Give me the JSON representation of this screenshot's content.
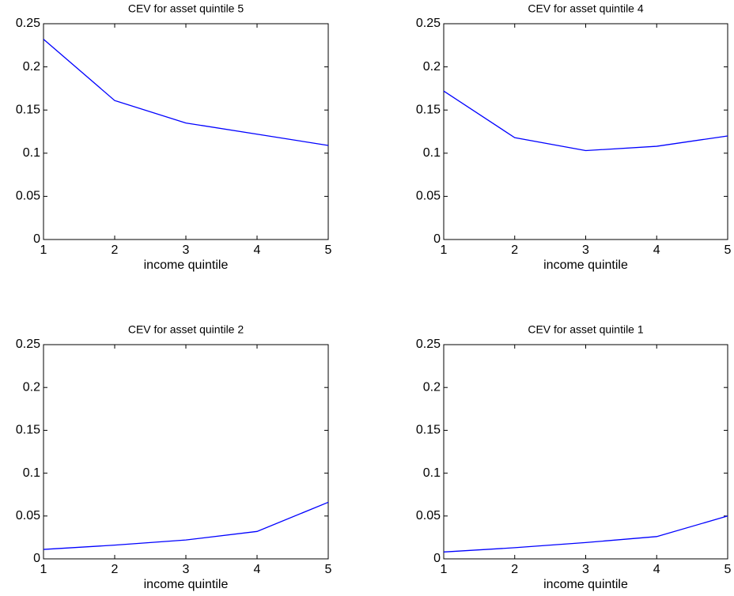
{
  "chart_data": [
    {
      "type": "line",
      "title": "CEV for asset quintile 5",
      "xlabel": "income quintile",
      "x": [
        1,
        2,
        3,
        4,
        5
      ],
      "values": [
        0.232,
        0.161,
        0.135,
        0.122,
        0.109
      ],
      "color": "#0000ff",
      "xlim": [
        1,
        5
      ],
      "xticks": [
        1,
        2,
        3,
        4,
        5
      ],
      "ylim": [
        0,
        0.25
      ],
      "yticks": [
        0,
        0.05,
        0.1,
        0.15,
        0.2,
        0.25
      ]
    },
    {
      "type": "line",
      "title": "CEV for asset quintile 4",
      "xlabel": "income quintile",
      "x": [
        1,
        2,
        3,
        4,
        5
      ],
      "values": [
        0.172,
        0.118,
        0.103,
        0.108,
        0.12
      ],
      "color": "#0000ff",
      "xlim": [
        1,
        5
      ],
      "xticks": [
        1,
        2,
        3,
        4,
        5
      ],
      "ylim": [
        0,
        0.25
      ],
      "yticks": [
        0,
        0.05,
        0.1,
        0.15,
        0.2,
        0.25
      ]
    },
    {
      "type": "line",
      "title": "CEV for asset quintile 2",
      "xlabel": "income quintile",
      "x": [
        1,
        2,
        3,
        4,
        5
      ],
      "values": [
        0.011,
        0.016,
        0.022,
        0.032,
        0.066
      ],
      "color": "#0000ff",
      "xlim": [
        1,
        5
      ],
      "xticks": [
        1,
        2,
        3,
        4,
        5
      ],
      "ylim": [
        0,
        0.25
      ],
      "yticks": [
        0,
        0.05,
        0.1,
        0.15,
        0.2,
        0.25
      ]
    },
    {
      "type": "line",
      "title": "CEV for asset quintile 1",
      "xlabel": "income quintile",
      "x": [
        1,
        2,
        3,
        4,
        5
      ],
      "values": [
        0.008,
        0.013,
        0.019,
        0.026,
        0.05
      ],
      "color": "#0000ff",
      "xlim": [
        1,
        5
      ],
      "xticks": [
        1,
        2,
        3,
        4,
        5
      ],
      "ylim": [
        0,
        0.25
      ],
      "yticks": [
        0,
        0.05,
        0.1,
        0.15,
        0.2,
        0.25
      ]
    }
  ]
}
